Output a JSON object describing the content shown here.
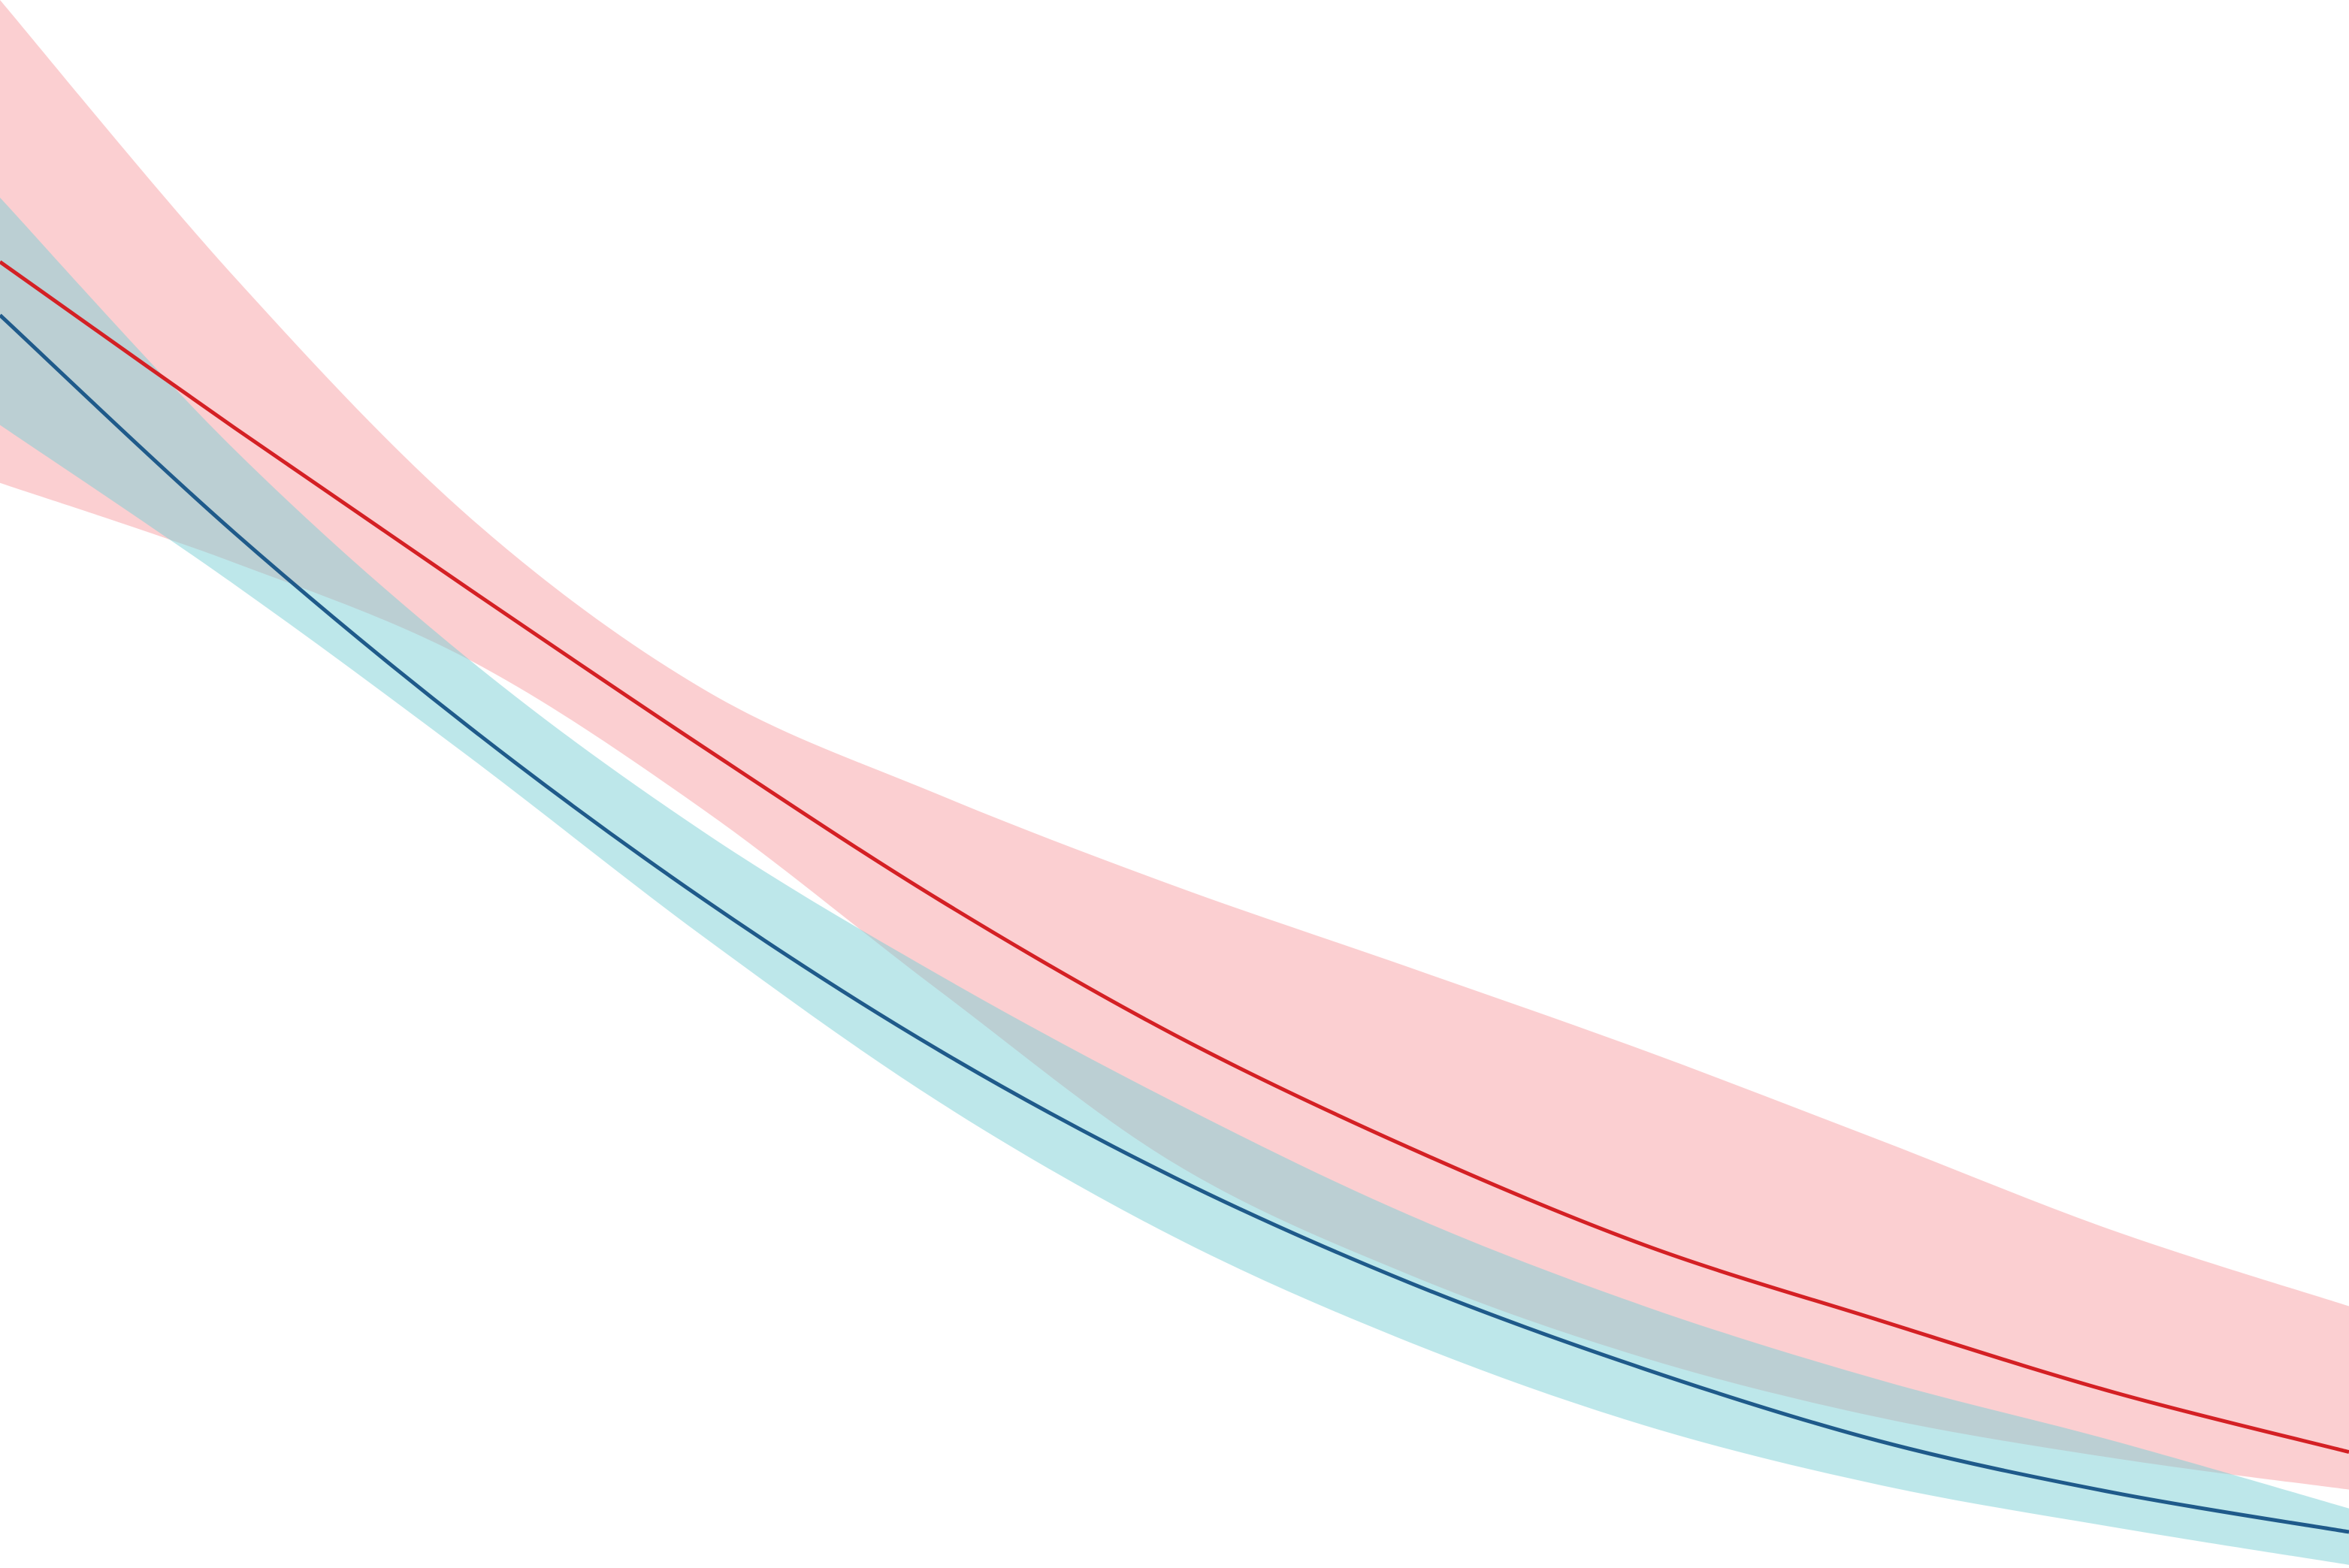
{
  "chart_data": {
    "type": "line",
    "x": [
      0,
      1,
      2,
      3,
      4,
      5,
      6,
      7,
      8,
      9,
      10
    ],
    "xlim": [
      0,
      10
    ],
    "ylim": [
      0,
      100
    ],
    "series": [
      {
        "color": "#d42024",
        "band_color": "#f7a0a3",
        "values": [
          83.3,
          72.7,
          62.4,
          52.3,
          42.6,
          34.0,
          26.8,
          20.6,
          15.8,
          11.2,
          7.4
        ],
        "band_upper": [
          100,
          82.3,
          67.0,
          56.0,
          49.3,
          43.5,
          38.3,
          33.0,
          27.3,
          21.5,
          16.7
        ],
        "band_lower": [
          69.2,
          64.1,
          57.9,
          48.3,
          36.8,
          25.8,
          18.7,
          13.4,
          9.6,
          7.0,
          5.0
        ]
      },
      {
        "color": "#1f5a8a",
        "band_color": "#7ccfd6",
        "values": [
          79.9,
          66.0,
          53.6,
          42.6,
          33.0,
          24.9,
          18.2,
          12.7,
          8.1,
          4.8,
          2.3
        ],
        "band_upper": [
          87.4,
          71.3,
          57.9,
          46.9,
          37.8,
          29.7,
          22.5,
          16.7,
          12.0,
          8.1,
          3.8
        ],
        "band_lower": [
          72.9,
          62.7,
          51.7,
          40.2,
          29.7,
          21.1,
          14.4,
          9.1,
          5.3,
          2.6,
          0.2
        ]
      }
    ]
  }
}
